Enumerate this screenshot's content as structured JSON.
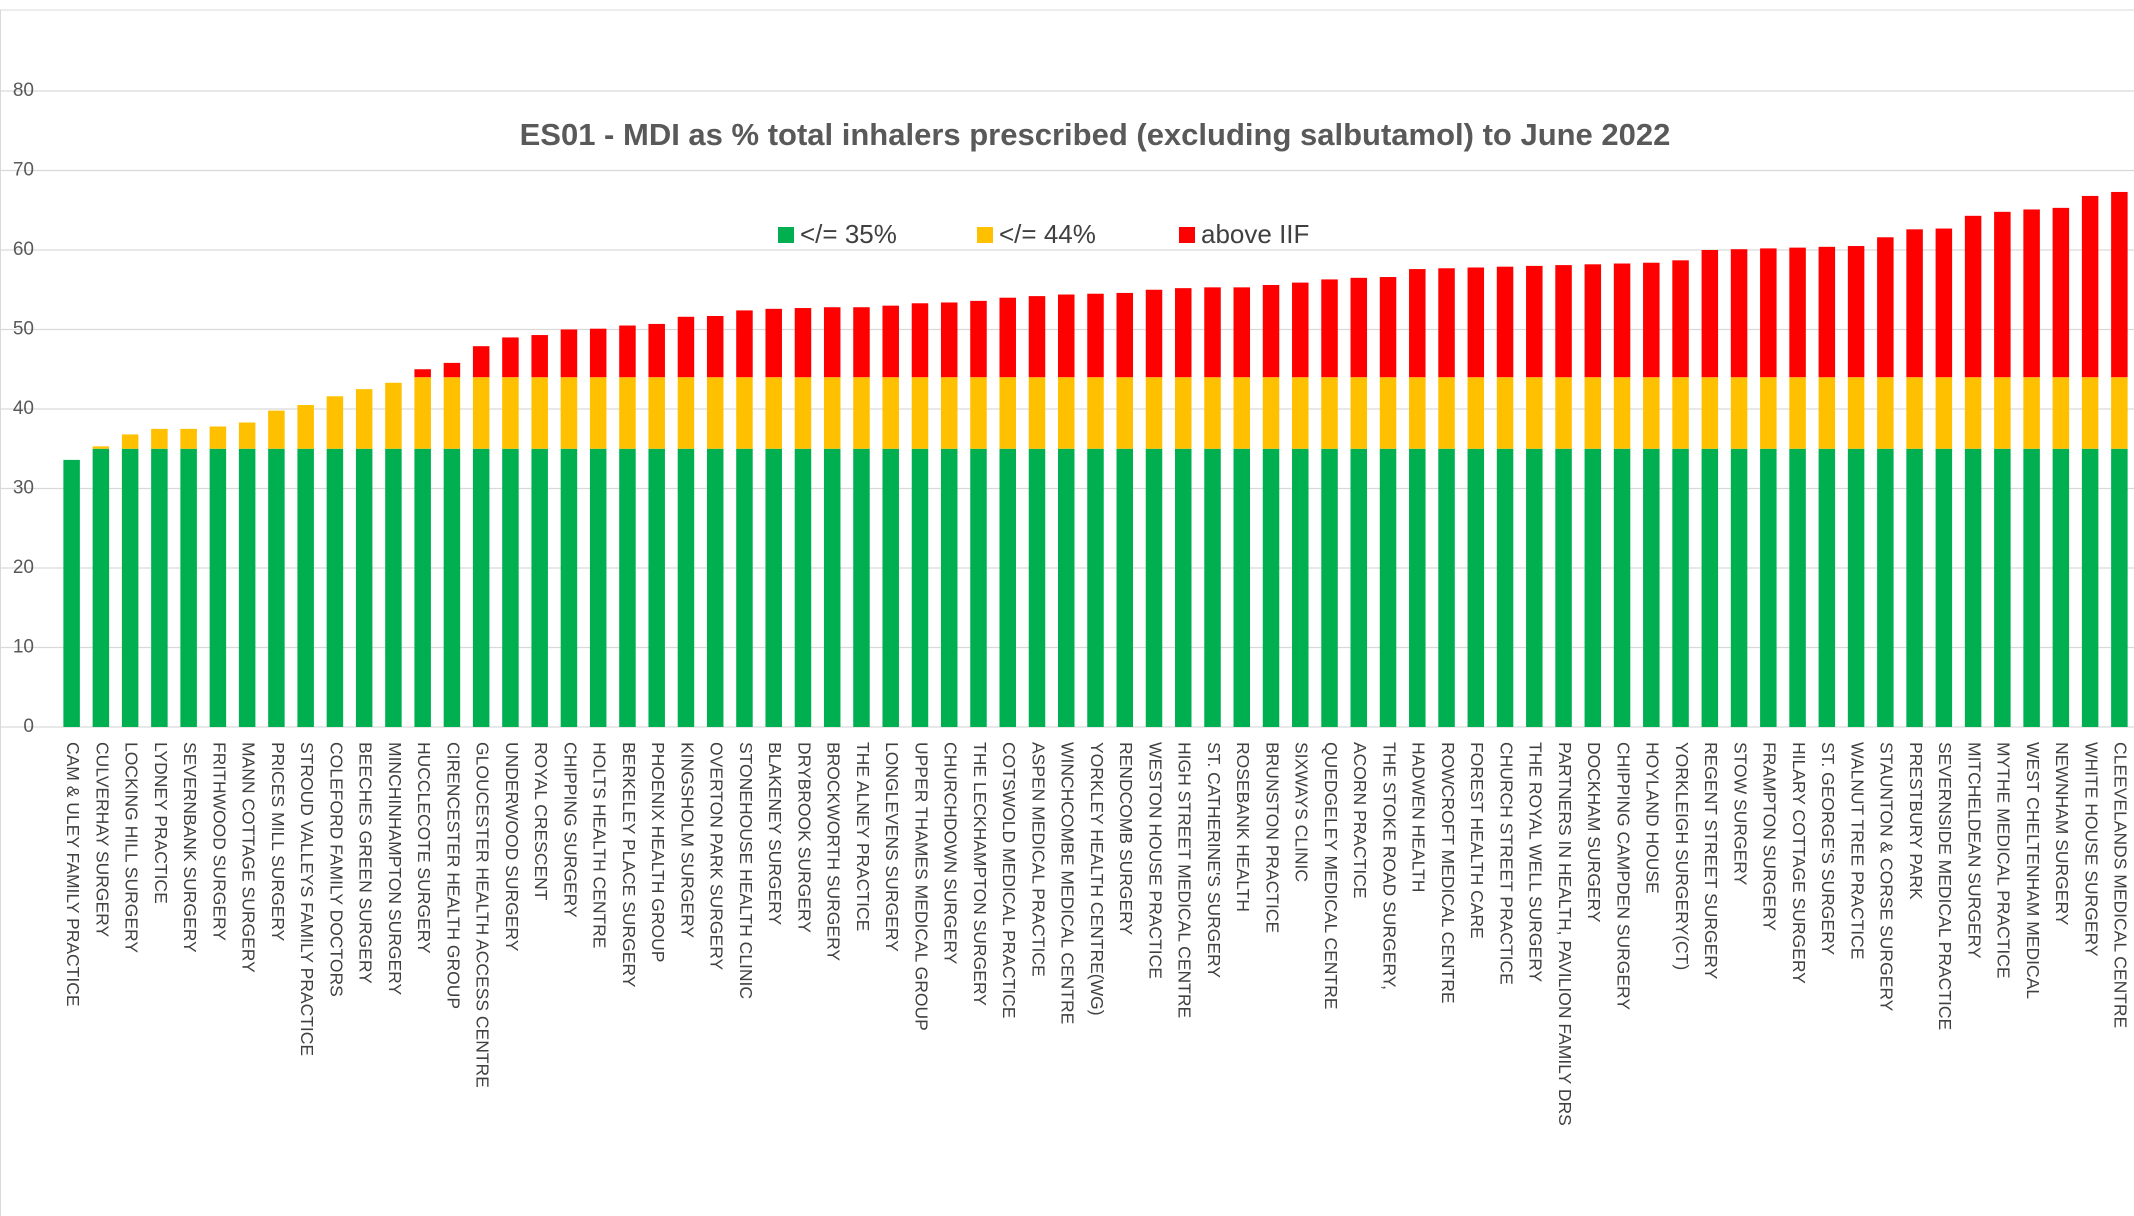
{
  "chart_data": {
    "type": "stacked_bar",
    "title": "ES01 - MDI as % total inhalers prescribed (excluding salbutamol) to June 2022",
    "categories": [
      "CAM & ULEY FAMILY PRACTICE",
      "CULVERHAY SURGERY",
      "LOCKING HILL SURGERY",
      "LYDNEY PRACTICE",
      "SEVERNBANK SURGERY",
      "FRITHWOOD SURGERY",
      "MANN COTTAGE SURGERY",
      "PRICES MILL SURGERY",
      "STROUD VALLEYS FAMILY PRACTICE",
      "COLEFORD FAMILY DOCTORS",
      "BEECHES GREEN SURGERY",
      "MINCHINHAMPTON SURGERY",
      "HUCCLECOTE SURGERY",
      "CIRENCESTER HEALTH GROUP",
      "GLOUCESTER HEALTH ACCESS CENTRE",
      "UNDERWOOD SURGERY",
      "ROYAL CRESCENT",
      "CHIPPING SURGERY",
      "HOLTS HEALTH CENTRE",
      "BERKELEY PLACE SURGERY",
      "PHOENIX HEALTH GROUP",
      "KINGSHOLM SURGERY",
      "OVERTON PARK SURGERY",
      "STONEHOUSE HEALTH CLINIC",
      "BLAKENEY SURGERY",
      "DRYBROOK SURGERY",
      "BROCKWORTH SURGERY",
      "THE ALNEY PRACTICE",
      "LONGLEVENS SURGERY",
      "UPPER THAMES MEDICAL GROUP",
      "CHURCHDOWN SURGERY",
      "THE LECKHAMPTON SURGERY",
      "COTSWOLD MEDICAL PRACTICE",
      "ASPEN MEDICAL PRACTICE",
      "WINCHCOMBE MEDICAL CENTRE",
      "YORKLEY HEALTH CENTRE(WG)",
      "RENDCOMB SURGERY",
      "WESTON HOUSE PRACTICE",
      "HIGH STREET MEDICAL CENTRE",
      "ST. CATHERINE'S SURGERY",
      "ROSEBANK HEALTH",
      "BRUNSTON PRACTICE",
      "SIXWAYS CLINIC",
      "QUEDGELEY MEDICAL CENTRE",
      "ACORN PRACTICE",
      "THE STOKE ROAD SURGERY,",
      "HADWEN HEALTH",
      "ROWCROFT MEDICAL CENTRE",
      "FOREST HEALTH CARE",
      "CHURCH STREET PRACTICE",
      "THE ROYAL WELL SURGERY",
      "PARTNERS IN HEALTH, PAVILION FAMILY DRS",
      "DOCKHAM SURGERY",
      "CHIPPING CAMPDEN SURGERY",
      "HOYLAND HOUSE",
      "YORKLEIGH SURGERY(CT)",
      "REGENT STREET SURGERY",
      "STOW SURGERY",
      "FRAMPTON SURGERY",
      "HILARY COTTAGE SURGERY",
      "ST. GEORGE'S SURGERY",
      "WALNUT TREE PRACTICE",
      "STAUNTON & CORSE SURGERY",
      "PRESTBURY PARK",
      "SEVERNSIDE MEDICAL PRACTICE",
      "MITCHELDEAN SURGERY",
      "MYTHE MEDICAL PRACTICE",
      "WEST CHELTENHAM MEDICAL",
      "NEWNHAM SURGERY",
      "WHITE HOUSE SURGERY",
      "CLEEVELANDS MEDICAL CENTRE"
    ],
    "series": [
      {
        "name": "</= 35%",
        "color": "#00b050",
        "values": [
          33.6,
          35,
          35,
          35,
          35,
          35,
          35,
          35,
          35,
          35,
          35,
          35,
          35,
          35,
          35,
          35,
          35,
          35,
          35,
          35,
          35,
          35,
          35,
          35,
          35,
          35,
          35,
          35,
          35,
          35,
          35,
          35,
          35,
          35,
          35,
          35,
          35,
          35,
          35,
          35,
          35,
          35,
          35,
          35,
          35,
          35,
          35,
          35,
          35,
          35,
          35,
          35,
          35,
          35,
          35,
          35,
          35,
          35,
          35,
          35,
          35,
          35,
          35,
          35,
          35,
          35,
          35,
          35,
          35,
          35,
          35
        ]
      },
      {
        "name": "</= 44%",
        "color": "#ffc000",
        "values": [
          0,
          0.3,
          1.8,
          2.5,
          2.5,
          2.8,
          3.3,
          4.8,
          5.5,
          6.6,
          7.5,
          8.3,
          9,
          9,
          9,
          9,
          9,
          9,
          9,
          9,
          9,
          9,
          9,
          9,
          9,
          9,
          9,
          9,
          9,
          9,
          9,
          9,
          9,
          9,
          9,
          9,
          9,
          9,
          9,
          9,
          9,
          9,
          9,
          9,
          9,
          9,
          9,
          9,
          9,
          9,
          9,
          9,
          9,
          9,
          9,
          9,
          9,
          9,
          9,
          9,
          9,
          9,
          9,
          9,
          9,
          9,
          9,
          9,
          9,
          9,
          9
        ]
      },
      {
        "name": "above IIF",
        "color": "#ff0000",
        "values": [
          0,
          0,
          0,
          0,
          0,
          0,
          0,
          0,
          0,
          0,
          0,
          0,
          1.0,
          1.8,
          3.9,
          5.0,
          5.3,
          6.0,
          6.1,
          6.5,
          6.7,
          7.6,
          7.7,
          8.4,
          8.6,
          8.7,
          8.8,
          8.8,
          9.0,
          9.3,
          9.4,
          9.6,
          10.0,
          10.2,
          10.4,
          10.5,
          10.6,
          11.0,
          11.2,
          11.3,
          11.3,
          11.6,
          11.9,
          12.3,
          12.5,
          12.6,
          13.6,
          13.7,
          13.8,
          13.9,
          14.0,
          14.1,
          14.2,
          14.3,
          14.4,
          14.7,
          16.0,
          16.1,
          16.2,
          16.3,
          16.4,
          16.5,
          17.6,
          18.6,
          18.7,
          20.3,
          20.8,
          21.1,
          21.3,
          22.8,
          23.3
        ]
      }
    ],
    "ylim": [
      0,
      80
    ],
    "yticks": [
      0,
      10,
      20,
      30,
      40,
      50,
      60,
      70,
      80
    ],
    "grid": true,
    "legend": "top"
  }
}
